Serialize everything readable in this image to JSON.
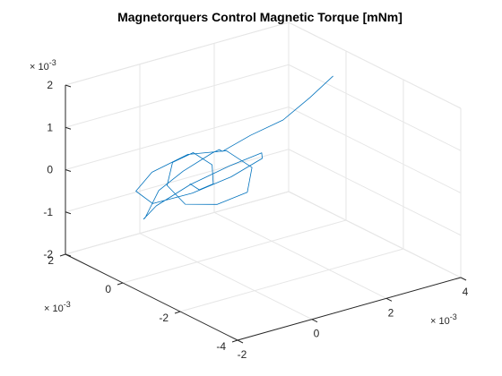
{
  "chart_data": {
    "type": "line",
    "title": "Magnetorquers Control Magnetic Torque [mNm]",
    "colors": {
      "series": "#0072bd",
      "axis": "#262626",
      "grid": "#e6e6e6"
    },
    "grid": true,
    "axes": {
      "x": {
        "ticks": [
          -2,
          0,
          2,
          4
        ],
        "tick_labels": [
          "-2",
          "0",
          "2",
          "4"
        ],
        "exponent_label": "× 10^-3",
        "lim": [
          -2,
          4
        ]
      },
      "y": {
        "ticks": [
          -4,
          -2,
          0,
          2
        ],
        "tick_labels": [
          "-4",
          "-2",
          "0",
          "2"
        ],
        "exponent_label": "× 10^-3",
        "lim": [
          -4,
          2
        ]
      },
      "z": {
        "ticks": [
          -2,
          -1,
          0,
          1,
          2
        ],
        "tick_labels": [
          "-2",
          "-1",
          "0",
          "1",
          "2"
        ],
        "exponent_label": "× 10^-3",
        "lim": [
          -2,
          2
        ]
      }
    },
    "series": [
      {
        "values_scale": 0.001,
        "x": [
          3.5,
          2.8,
          2.0,
          1.2,
          0.6,
          0.9,
          1.1,
          0.7,
          0.2,
          -0.4,
          -0.9,
          -1.1,
          -0.8,
          -0.2,
          0.5,
          0.9,
          0.6,
          0.1,
          -0.5,
          -0.8,
          -0.6,
          -0.1,
          0.4,
          0.7,
          0.5,
          0.0,
          -0.4,
          -0.5,
          -0.2,
          0.2,
          0.4,
          0.2,
          -0.1,
          -0.2
        ],
        "y": [
          -0.2,
          -0.3,
          -0.4,
          -0.3,
          -0.1,
          0.4,
          0.9,
          1.4,
          1.6,
          1.3,
          0.7,
          0.0,
          -0.8,
          -1.4,
          -1.6,
          -1.1,
          -0.4,
          0.3,
          0.9,
          1.1,
          0.8,
          0.2,
          -0.5,
          -1.0,
          -1.1,
          -0.7,
          -0.1,
          0.4,
          0.6,
          0.4,
          0.0,
          -0.3,
          -0.2,
          0.0
        ],
        "z": [
          1.6,
          1.3,
          1.0,
          0.8,
          0.5,
          0.3,
          0.0,
          -0.5,
          -0.9,
          -1.3,
          -1.0,
          -0.4,
          0.3,
          0.8,
          1.0,
          0.6,
          0.0,
          -0.5,
          -0.8,
          -0.5,
          0.0,
          0.5,
          0.7,
          0.4,
          -0.1,
          -0.4,
          -0.5,
          -0.2,
          0.2,
          0.4,
          0.2,
          -0.1,
          -0.2,
          -0.1
        ]
      }
    ]
  }
}
